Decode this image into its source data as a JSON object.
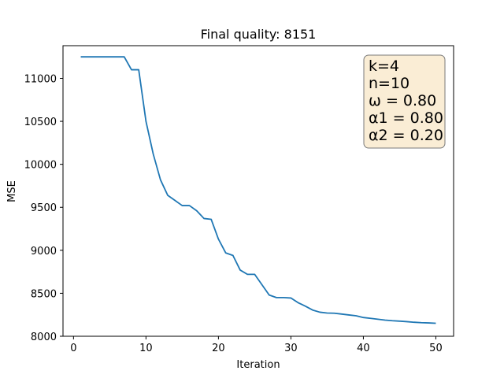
{
  "chart_data": {
    "type": "line",
    "title": "Final quality: 8151",
    "xlabel": "Iteration",
    "ylabel": "MSE",
    "xlim": [
      -1.45,
      52.45
    ],
    "ylim": [
      8000,
      11380
    ],
    "xticks": [
      0,
      10,
      20,
      30,
      40,
      50
    ],
    "yticks": [
      8000,
      8500,
      9000,
      9500,
      10000,
      10500,
      11000
    ],
    "grid": false,
    "series": [
      {
        "color": "#1f77b4",
        "x": [
          1,
          2,
          3,
          4,
          5,
          6,
          7,
          8,
          9,
          10,
          11,
          12,
          13,
          14,
          15,
          16,
          17,
          18,
          19,
          20,
          21,
          22,
          23,
          24,
          25,
          26,
          27,
          28,
          29,
          30,
          31,
          32,
          33,
          34,
          35,
          36,
          37,
          38,
          39,
          40,
          41,
          42,
          43,
          44,
          45,
          46,
          47,
          48,
          49,
          50
        ],
        "y": [
          11250,
          11250,
          11250,
          11250,
          11250,
          11250,
          11250,
          11100,
          11100,
          10500,
          10120,
          9820,
          9640,
          9580,
          9520,
          9520,
          9460,
          9370,
          9360,
          9130,
          8970,
          8940,
          8770,
          8720,
          8720,
          8600,
          8480,
          8450,
          8450,
          8445,
          8390,
          8350,
          8305,
          8280,
          8270,
          8268,
          8258,
          8248,
          8238,
          8218,
          8208,
          8198,
          8188,
          8181,
          8176,
          8170,
          8163,
          8158,
          8155,
          8151
        ]
      }
    ],
    "annotation": {
      "lines": [
        "k=4",
        "n=10",
        "ω = 0.80",
        "α1 = 0.80",
        "α2 = 0.20"
      ],
      "facecolor": "#f5deb3",
      "position": "top-right"
    }
  }
}
